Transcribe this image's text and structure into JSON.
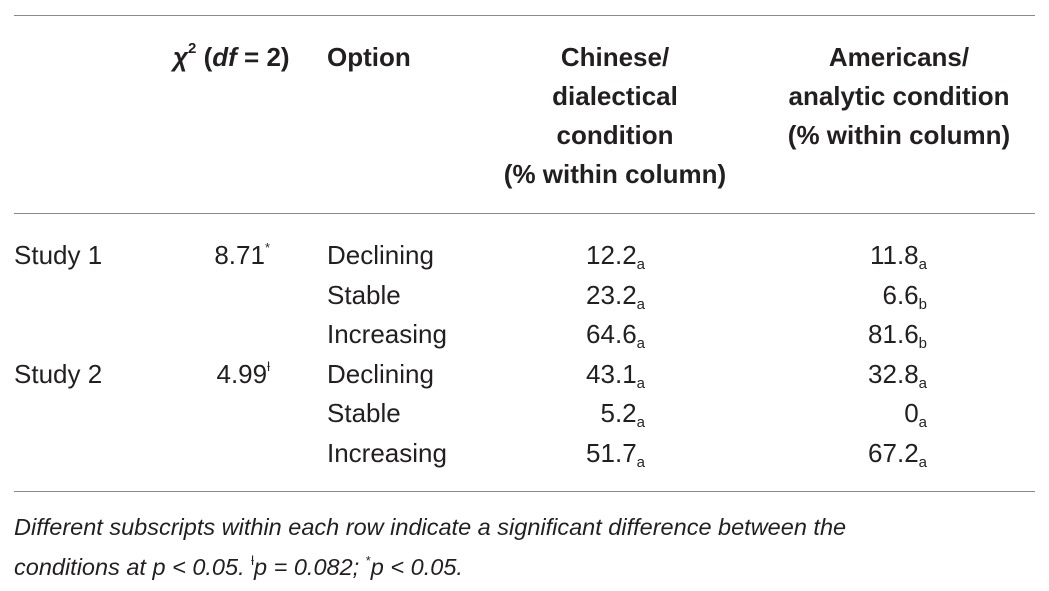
{
  "header": {
    "chi_symbol": "χ",
    "chi_exp": "2",
    "chi_open": " (",
    "chi_df": "df",
    "chi_close": " = 2)",
    "option": "Option",
    "chinese_lines": [
      "Chinese/",
      "dialectical",
      "condition",
      "(% within column)"
    ],
    "americans_lines": [
      "Americans/",
      "analytic condition",
      "(% within column)"
    ]
  },
  "rows": [
    {
      "study": "Study 1",
      "chi": "8.71",
      "chi_mark": "*",
      "option": "Declining",
      "cn": "12.2",
      "cn_sub": "a",
      "us": "11.8",
      "us_sub": "a"
    },
    {
      "study": "",
      "chi": "",
      "chi_mark": "",
      "option": "Stable",
      "cn": "23.2",
      "cn_sub": "a",
      "us": "6.6",
      "us_sub": "b"
    },
    {
      "study": "",
      "chi": "",
      "chi_mark": "",
      "option": "Increasing",
      "cn": "64.6",
      "cn_sub": "a",
      "us": "81.6",
      "us_sub": "b"
    },
    {
      "study": "Study 2",
      "chi": "4.99",
      "chi_mark": "ƚ",
      "option": "Declining",
      "cn": "43.1",
      "cn_sub": "a",
      "us": "32.8",
      "us_sub": "a"
    },
    {
      "study": "",
      "chi": "",
      "chi_mark": "",
      "option": "Stable",
      "cn": "5.2",
      "cn_sub": "a",
      "us": "0",
      "us_sub": "a"
    },
    {
      "study": "",
      "chi": "",
      "chi_mark": "",
      "option": "Increasing",
      "cn": "51.7",
      "cn_sub": "a",
      "us": "67.2",
      "us_sub": "a"
    }
  ],
  "note": {
    "line1": "Different subscripts within each row indicate a significant difference between the",
    "line2_a": "conditions at p < 0.05. ",
    "mark1": "ƚ",
    "line2_b": "p = 0.082; ",
    "mark2": "*",
    "line2_c": "p < 0.05."
  }
}
